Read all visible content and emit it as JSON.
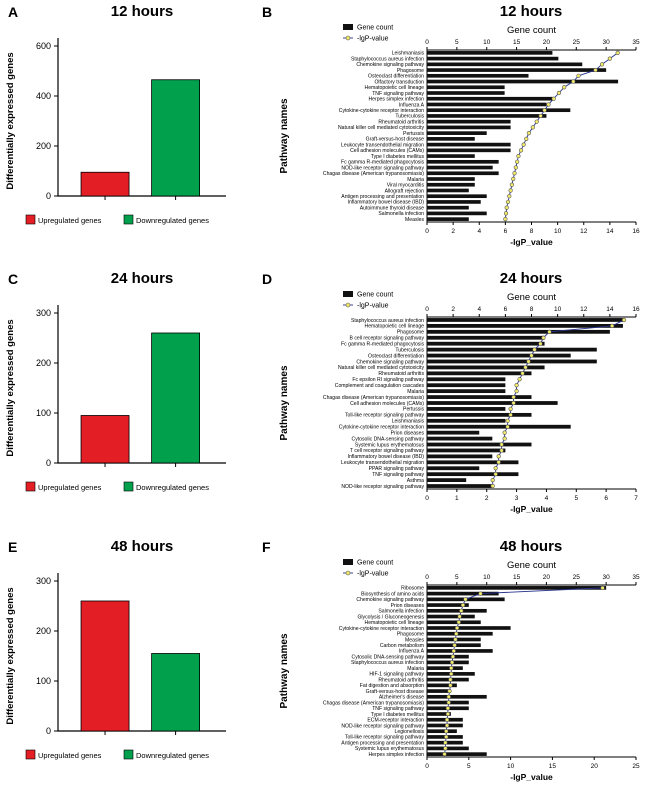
{
  "panels": {
    "A": {
      "letter": "A",
      "title": "12 hours"
    },
    "B": {
      "letter": "B",
      "title": "12 hours"
    },
    "C": {
      "letter": "C",
      "title": "24 hours"
    },
    "D": {
      "letter": "D",
      "title": "24 hours"
    },
    "E": {
      "letter": "E",
      "title": "48 hours"
    },
    "F": {
      "letter": "F",
      "title": "48 hours"
    }
  },
  "colors": {
    "upregulated": "#e31e25",
    "downregulated": "#00a04d",
    "gene_count_bar": "#111111",
    "lgp_line": "#26338b",
    "lgp_dot_fill": "#f2ea6a"
  },
  "chart_data": [
    {
      "type": "bar",
      "panel": "A",
      "title": "12 hours",
      "ylabel": "Differentially expressed genes",
      "categories": [
        "Upregulated genes",
        "Downregulated genes"
      ],
      "values": [
        95,
        465
      ],
      "bar_colors": [
        "#e31e25",
        "#00a04d"
      ],
      "ylim": [
        0,
        600
      ],
      "yticks": [
        0,
        200,
        400,
        600
      ],
      "legend_position": "bottom",
      "grid": false
    },
    {
      "type": "bar",
      "orientation": "horizontal",
      "panel": "B",
      "title": "12 hours",
      "ylabel": "Pathway names",
      "top_axis_label": "Gene count",
      "bottom_axis_label": "-lgP_value",
      "legend": [
        "Gene count",
        "-lgP-value"
      ],
      "legend_position": "top-left",
      "bar_color": "#111111",
      "line_color": "#26338b",
      "dot_fill": "#f2ea6a",
      "top_xlim": [
        0,
        35
      ],
      "top_xticks": [
        0,
        5,
        10,
        15,
        20,
        25,
        30,
        35
      ],
      "bottom_xlim": [
        0,
        16
      ],
      "bottom_xticks": [
        0,
        2,
        4,
        6,
        8,
        10,
        12,
        14,
        16
      ],
      "categories": [
        "Leishmaniasis",
        "Staphylococcus aureus infection",
        "Chemokine signaling pathway",
        "Phagosome",
        "Osteoclast differentiation",
        "Olfactory transduction",
        "Hematopoietic cell lineage",
        "TNF signaling pathway",
        "Herpes simplex infection",
        "Influenza A",
        "Cytokine-cytokine receptor interaction",
        "Tuberculosis",
        "Rheumatoid arthritis",
        "Natural killer cell mediated cytotoxicity",
        "Pertussis",
        "Graft-versus-host disease",
        "Leukocyte transendothelial migration",
        "Cell adhesion molecules (CAMs)",
        "Type I diabetes mellitus",
        "Fc gamma R-mediated phagocytosis",
        "NOD-like receptor signaling pathway",
        "Chagas disease (American trypanosomiasis)",
        "Malaria",
        "Viral myocarditis",
        "Allograft rejection",
        "Antigen processing and presentation",
        "Inflammatory bowel disease (IBD)",
        "Autoimmune thyroid disease",
        "Salmonella infection",
        "Measles"
      ],
      "series": [
        {
          "name": "Gene count",
          "axis": "top",
          "values": [
            21,
            22,
            26,
            30,
            17,
            32,
            13,
            13,
            21,
            20,
            24,
            20,
            14,
            14,
            10,
            8,
            14,
            14,
            8,
            12,
            11,
            12,
            8,
            8,
            7,
            10,
            9,
            7,
            10,
            7
          ]
        },
        {
          "name": "-lgP-value",
          "axis": "bottom",
          "values": [
            14.6,
            14.0,
            13.4,
            12.9,
            11.6,
            11.2,
            10.5,
            10.1,
            9.7,
            9.3,
            9.0,
            8.7,
            8.4,
            8.1,
            7.8,
            7.6,
            7.4,
            7.2,
            7.0,
            6.9,
            6.8,
            6.7,
            6.6,
            6.5,
            6.4,
            6.3,
            6.2,
            6.1,
            6.05,
            6.0
          ]
        }
      ]
    },
    {
      "type": "bar",
      "panel": "C",
      "title": "24 hours",
      "ylabel": "Differentially expressed genes",
      "categories": [
        "Upregulated genes",
        "Downregulated genes"
      ],
      "values": [
        95,
        260
      ],
      "bar_colors": [
        "#e31e25",
        "#00a04d"
      ],
      "ylim": [
        0,
        300
      ],
      "yticks": [
        0,
        100,
        200,
        300
      ],
      "legend_position": "bottom",
      "grid": false
    },
    {
      "type": "bar",
      "orientation": "horizontal",
      "panel": "D",
      "title": "24 hours",
      "ylabel": "Pathway names",
      "top_axis_label": "Gene count",
      "bottom_axis_label": "-lgP_value",
      "legend": [
        "Gene count",
        "-lgP-value"
      ],
      "legend_position": "top-left",
      "bar_color": "#111111",
      "line_color": "#26338b",
      "dot_fill": "#f2ea6a",
      "top_xlim": [
        0,
        16
      ],
      "top_xticks": [
        0,
        2,
        4,
        6,
        8,
        10,
        12,
        14,
        16
      ],
      "bottom_xlim": [
        0,
        7
      ],
      "bottom_xticks": [
        0,
        1,
        2,
        3,
        4,
        5,
        6,
        7
      ],
      "categories": [
        "Staphylococcus aureus infection",
        "Hematopoietic cell lineage",
        "Phagosome",
        "B cell receptor signaling pathway",
        "Fc gamma R-mediated phagocytosis",
        "Tuberculosis",
        "Osteoclast differentiation",
        "Chemokine signaling pathway",
        "Natural killer cell mediated cytotoxicity",
        "Rheumatoid arthritis",
        "Fc epsilon RI signaling pathway",
        "Complement and coagulation cascades",
        "Malaria",
        "Chagas disease (American trypanosomiasis)",
        "Cell adhesion molecules (CAMs)",
        "Pertussis",
        "Toll-like receptor signaling pathway",
        "Leishmaniasis",
        "Cytokine-cytokine receptor interaction",
        "Prion diseases",
        "Cytosolic DNA-sensing pathway",
        "Systemic lupus erythematosus",
        "T cell receptor signaling pathway",
        "Inflammatory bowel disease (IBD)",
        "Leukocyte transendothelial migration",
        "PPAR signaling pathway",
        "TNF signaling pathway",
        "Asthma",
        "NOD-like receptor signaling pathway"
      ],
      "series": [
        {
          "name": "Gene count",
          "axis": "top",
          "values": [
            15,
            15,
            14,
            9,
            9,
            13,
            11,
            13,
            9,
            8,
            6,
            6,
            6,
            8,
            10,
            6,
            8,
            6,
            11,
            4,
            5,
            8,
            6,
            5,
            7,
            4,
            7,
            3,
            5
          ]
        },
        {
          "name": "-lgP-value",
          "axis": "bottom",
          "values": [
            6.6,
            6.2,
            4.1,
            3.9,
            3.8,
            3.6,
            3.5,
            3.4,
            3.3,
            3.2,
            3.1,
            3.0,
            3.0,
            2.9,
            2.9,
            2.8,
            2.8,
            2.7,
            2.7,
            2.6,
            2.6,
            2.5,
            2.5,
            2.4,
            2.4,
            2.3,
            2.3,
            2.2,
            2.2
          ]
        }
      ]
    },
    {
      "type": "bar",
      "panel": "E",
      "title": "48 hours",
      "ylabel": "Differentially expressed genes",
      "categories": [
        "Upregulated genes",
        "Downregulated genes"
      ],
      "values": [
        260,
        155
      ],
      "bar_colors": [
        "#e31e25",
        "#00a04d"
      ],
      "ylim": [
        0,
        300
      ],
      "yticks": [
        0,
        100,
        200,
        300
      ],
      "legend_position": "bottom",
      "grid": false
    },
    {
      "type": "bar",
      "orientation": "horizontal",
      "panel": "F",
      "title": "48 hours",
      "ylabel": "Pathway names",
      "top_axis_label": "Gene count",
      "bottom_axis_label": "-lgP_value",
      "legend": [
        "Gene count",
        "-lgP-value"
      ],
      "legend_position": "top-left",
      "bar_color": "#111111",
      "line_color": "#26338b",
      "dot_fill": "#f2ea6a",
      "top_xlim": [
        0,
        35
      ],
      "top_xticks": [
        0,
        5,
        10,
        15,
        20,
        25,
        30,
        35
      ],
      "bottom_xlim": [
        0,
        25
      ],
      "bottom_xticks": [
        0,
        5,
        10,
        15,
        20,
        25
      ],
      "categories": [
        "Ribosome",
        "Biosynthesis of amino acids",
        "Chemokine signaling pathway",
        "Prion diseases",
        "Salmonella infection",
        "Glycolysis / Gluconeogenesis",
        "Hematopoietic cell lineage",
        "Cytokine-cytokine receptor interaction",
        "Phagosome",
        "Measles",
        "Carbon metabolism",
        "Influenza A",
        "Cytosolic DNA-sensing pathway",
        "Staphylococcus aureus infection",
        "Malaria",
        "HIF-1 signaling pathway",
        "Rheumatoid arthritis",
        "Fat digestion and absorption",
        "Graft-versus-host disease",
        "Alzheimer's disease",
        "Chagas disease (American trypanosomiasis)",
        "TNF signaling pathway",
        "Type I diabetes mellitus",
        "ECM-receptor interaction",
        "NOD-like receptor signaling pathway",
        "Legionellosis",
        "Toll-like receptor signaling pathway",
        "Antigen processing and presentation",
        "Systemic lupus erythematosus",
        "Herpes simplex infection"
      ],
      "series": [
        {
          "name": "Gene count",
          "axis": "top",
          "values": [
            30,
            12,
            13,
            7,
            10,
            8,
            9,
            14,
            11,
            9,
            9,
            11,
            7,
            7,
            6,
            8,
            7,
            5,
            4,
            10,
            7,
            7,
            4,
            6,
            6,
            5,
            6,
            6,
            7,
            10
          ]
        },
        {
          "name": "-lgP-value",
          "axis": "bottom",
          "values": [
            21.0,
            6.4,
            4.6,
            4.3,
            4.1,
            3.9,
            3.8,
            3.6,
            3.5,
            3.4,
            3.3,
            3.2,
            3.1,
            3.0,
            2.9,
            2.9,
            2.8,
            2.8,
            2.7,
            2.6,
            2.6,
            2.5,
            2.5,
            2.4,
            2.4,
            2.3,
            2.3,
            2.2,
            2.2,
            2.1
          ]
        }
      ]
    }
  ]
}
